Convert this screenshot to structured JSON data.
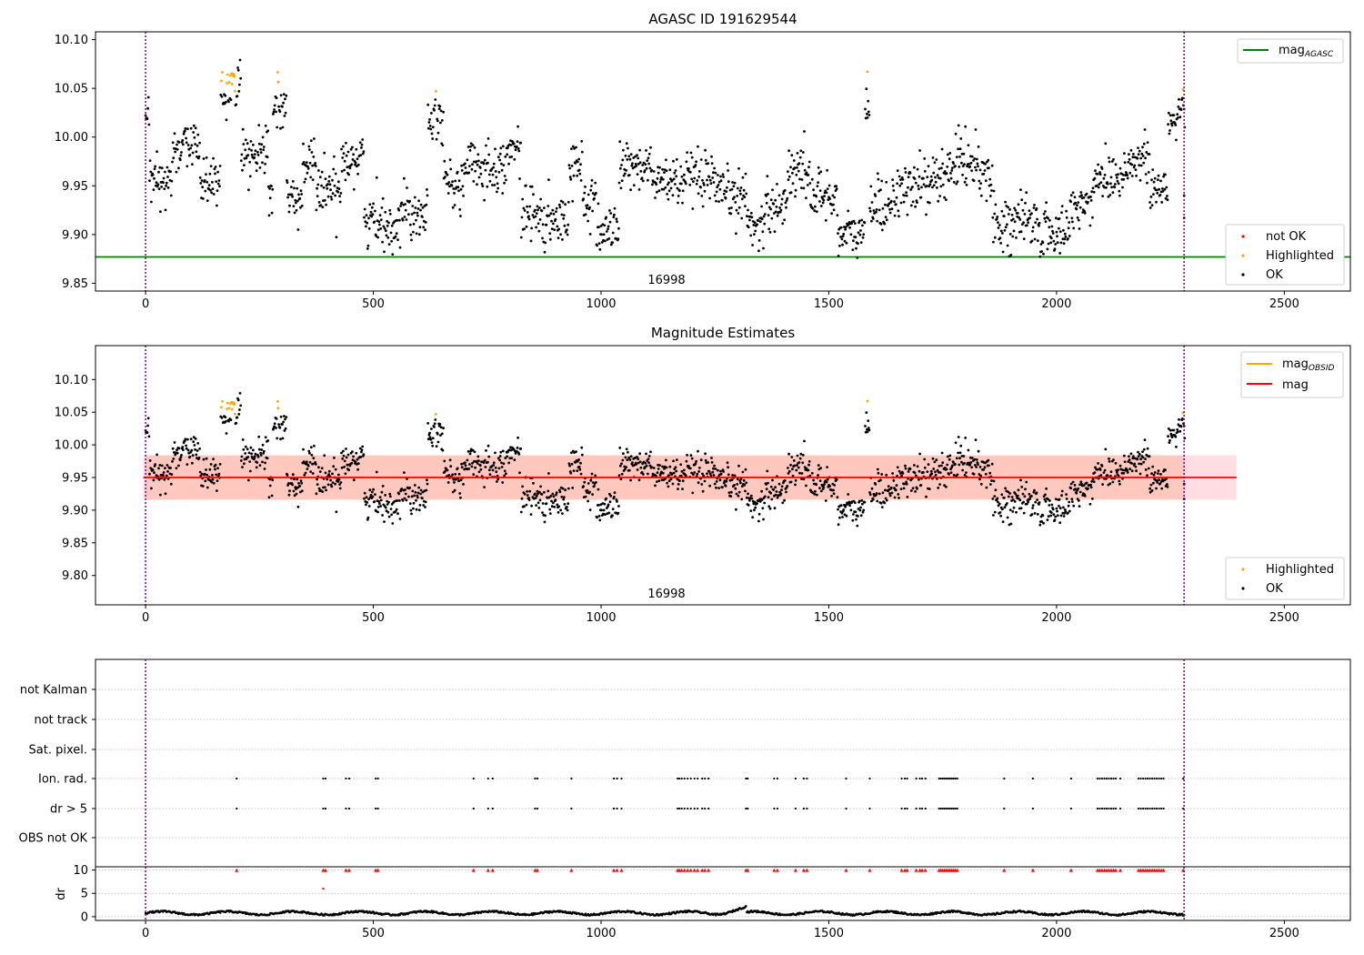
{
  "colors": {
    "ok": "#000000",
    "not_ok": "#ff0000",
    "highlighted": "#ffa500",
    "mag_agasc": "#008000",
    "mag_line": "#ff0000",
    "mag_obsid": "#ffa500",
    "obs_boundary": "#800080",
    "band_outer": "#ffb6c1",
    "band_inner": "#ffa07a",
    "grid": "#b0b0b0"
  },
  "chart_data": [
    {
      "type": "scatter",
      "id": "top",
      "title": "AGASC ID 191629544",
      "xlim": [
        -110,
        2645
      ],
      "ylim": [
        9.842,
        10.108
      ],
      "x_ticks": [
        0,
        500,
        1000,
        1500,
        2000,
        2500
      ],
      "y_ticks": [
        9.85,
        9.9,
        9.95,
        10.0,
        10.05,
        10.1
      ],
      "y_tick_labels": [
        "9.85",
        "9.90",
        "9.95",
        "10.00",
        "10.05",
        "10.10"
      ],
      "obsid_label": "16998",
      "obs_boundaries": [
        0,
        2280
      ],
      "mag_agasc": 9.877,
      "legend_lines": [
        {
          "label_main": "mag",
          "label_sub": "AGASC",
          "color_key": "mag_agasc"
        }
      ],
      "legend_points": [
        {
          "label": "not OK",
          "color_key": "not_ok"
        },
        {
          "label": "Highlighted",
          "color_key": "highlighted"
        },
        {
          "label": "OK",
          "color_key": "ok"
        }
      ]
    },
    {
      "type": "scatter",
      "id": "mid",
      "title": "Magnitude Estimates",
      "xlim": [
        -110,
        2645
      ],
      "ylim": [
        9.755,
        10.152
      ],
      "x_ticks": [
        0,
        500,
        1000,
        1500,
        2000,
        2500
      ],
      "y_ticks": [
        9.8,
        9.85,
        9.9,
        9.95,
        10.0,
        10.05,
        10.1
      ],
      "y_tick_labels": [
        "9.80",
        "9.85",
        "9.90",
        "9.95",
        "10.00",
        "10.05",
        "10.10"
      ],
      "obsid_label": "16998",
      "obs_boundaries": [
        0,
        2280
      ],
      "mag_mean": 9.95,
      "band_outer": [
        9.916,
        9.984
      ],
      "band_inner": [
        9.916,
        9.984
      ],
      "band_x": [
        0,
        2395
      ],
      "legend_lines": [
        {
          "label_main": "mag",
          "label_sub": "OBSID",
          "color_key": "mag_obsid"
        },
        {
          "label_main": "mag",
          "label_sub": "",
          "color_key": "mag_line"
        }
      ],
      "legend_points": [
        {
          "label": "Highlighted",
          "color_key": "highlighted"
        },
        {
          "label": "OK",
          "color_key": "ok"
        }
      ]
    },
    {
      "type": "scatter",
      "id": "flags",
      "xlim": [
        -110,
        2645
      ],
      "categories": [
        "not Kalman",
        "not track",
        "Sat. pixel.",
        "Ion. rad.",
        "dr > 5",
        "OBS not OK"
      ],
      "flag_x": [
        200,
        390,
        395,
        440,
        447,
        505,
        510,
        720,
        752,
        762,
        855,
        860,
        935,
        1028,
        1035,
        1045,
        1168,
        1172,
        1177,
        1183,
        1190,
        1197,
        1205,
        1212,
        1222,
        1228,
        1236,
        1318,
        1322,
        1380,
        1387,
        1427,
        1445,
        1452,
        1538,
        1590,
        1660,
        1667,
        1672,
        1692,
        1700,
        1705,
        1712,
        1742,
        1746,
        1750,
        1754,
        1758,
        1762,
        1766,
        1770,
        1774,
        1778,
        1782,
        1885,
        1948,
        2032,
        2090,
        2095,
        2100,
        2105,
        2110,
        2115,
        2120,
        2125,
        2130,
        2140,
        2180,
        2185,
        2190,
        2195,
        2200,
        2205,
        2210,
        2215,
        2220,
        2225,
        2230,
        2235,
        2278
      ],
      "obs_boundaries": [
        0,
        2280
      ]
    },
    {
      "type": "scatter",
      "id": "dr",
      "ylabel": "dr",
      "xlim": [
        -110,
        2645
      ],
      "ylim": [
        -0.8,
        10.7
      ],
      "x_ticks": [
        0,
        500,
        1000,
        1500,
        2000,
        2500
      ],
      "y_ticks": [
        0,
        5,
        10
      ],
      "y_tick_labels": [
        "0",
        "5",
        "10"
      ],
      "dr_clip": 10,
      "outlier": {
        "x": 390,
        "y": 6
      },
      "obs_boundaries": [
        0,
        2280
      ]
    }
  ]
}
